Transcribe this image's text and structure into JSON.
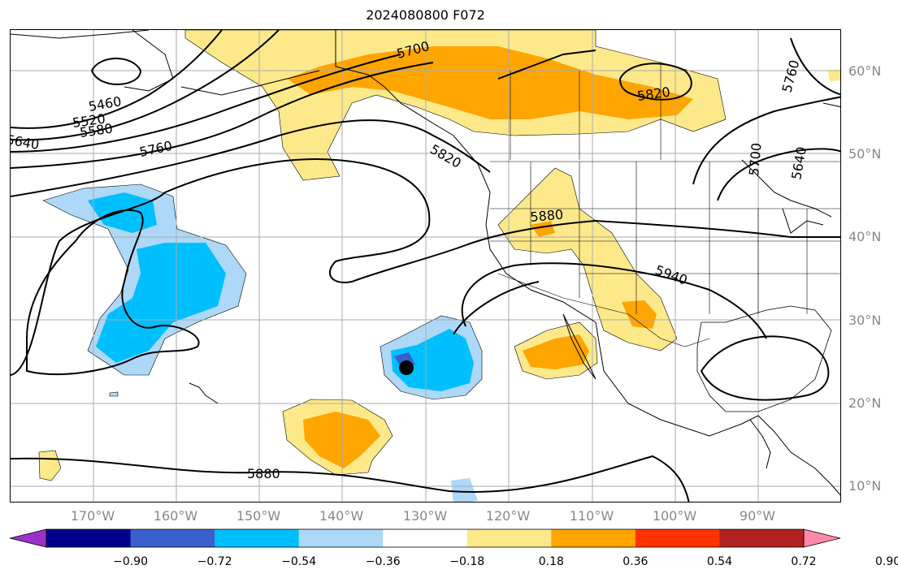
{
  "title": "2024080800 F072",
  "lat_labels": [
    "60°N",
    "50°N",
    "40°N",
    "30°N",
    "20°N",
    "10°N"
  ],
  "lon_labels": [
    "170°W",
    "160°W",
    "150°W",
    "140°W",
    "130°W",
    "120°W",
    "110°W",
    "100°W",
    "90°W"
  ],
  "contour_labels": [
    "5460",
    "5520",
    "5580",
    "5640",
    "5700",
    "5760",
    "5820",
    "5880",
    "5940",
    "5820",
    "5760",
    "5700",
    "5640",
    "5880"
  ],
  "colorbar": {
    "ticks": [
      "−0.90",
      "−0.72",
      "−0.54",
      "−0.36",
      "−0.18",
      "0.18",
      "0.36",
      "0.54",
      "0.72",
      "0.90"
    ],
    "colors": [
      "#9932cc",
      "#00008b",
      "#3a5fcd",
      "#00bfff",
      "#add8f8",
      "#ffffff",
      "#fde98a",
      "#ffa500",
      "#ff3300",
      "#b22222",
      "#ff88aa"
    ]
  },
  "marker": "storm-center"
}
